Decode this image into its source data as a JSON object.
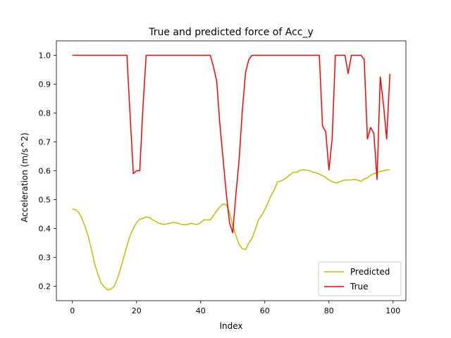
{
  "chart_data": {
    "type": "line",
    "title": "True and predicted force of Acc_y",
    "xlabel": "Index",
    "ylabel": "Acceleration (m/s^2)",
    "xlim": [
      -5,
      104
    ],
    "ylim": [
      0.15,
      1.05
    ],
    "xticks": [
      0,
      20,
      40,
      60,
      80,
      100
    ],
    "yticks": [
      0.2,
      0.3,
      0.4,
      0.5,
      0.6,
      0.7,
      0.8,
      0.9,
      1.0
    ],
    "ytick_labels": [
      "0.2",
      "0.3",
      "0.4",
      "0.5",
      "0.6",
      "0.7",
      "0.8",
      "0.9",
      "1.0"
    ],
    "grid": false,
    "legend": "lower-right",
    "series": [
      {
        "name": "Predicted",
        "color": "#bfbf00",
        "x": [
          0,
          1,
          2,
          3,
          4,
          5,
          6,
          7,
          8,
          9,
          10,
          11,
          12,
          13,
          14,
          15,
          16,
          17,
          18,
          19,
          20,
          21,
          22,
          23,
          24,
          25,
          26,
          27,
          28,
          29,
          30,
          31,
          32,
          33,
          34,
          35,
          36,
          37,
          38,
          39,
          40,
          41,
          42,
          43,
          44,
          45,
          46,
          47,
          48,
          49,
          50,
          51,
          52,
          53,
          54,
          55,
          56,
          57,
          58,
          59,
          60,
          61,
          62,
          63,
          64,
          65,
          66,
          67,
          68,
          69,
          70,
          71,
          72,
          73,
          74,
          75,
          76,
          77,
          78,
          79,
          80,
          81,
          82,
          83,
          84,
          85,
          86,
          87,
          88,
          89,
          90,
          91,
          92,
          93,
          94,
          95,
          96,
          97,
          98,
          99
        ],
        "values": [
          0.468,
          0.465,
          0.455,
          0.435,
          0.405,
          0.37,
          0.325,
          0.275,
          0.24,
          0.21,
          0.197,
          0.187,
          0.19,
          0.2,
          0.225,
          0.26,
          0.3,
          0.34,
          0.375,
          0.4,
          0.42,
          0.433,
          0.435,
          0.44,
          0.438,
          0.43,
          0.425,
          0.418,
          0.415,
          0.415,
          0.417,
          0.42,
          0.42,
          0.418,
          0.414,
          0.413,
          0.414,
          0.418,
          0.415,
          0.414,
          0.42,
          0.43,
          0.43,
          0.43,
          0.445,
          0.462,
          0.475,
          0.485,
          0.483,
          0.455,
          0.41,
          0.375,
          0.345,
          0.33,
          0.327,
          0.35,
          0.365,
          0.395,
          0.43,
          0.445,
          0.465,
          0.49,
          0.515,
          0.535,
          0.562,
          0.565,
          0.57,
          0.578,
          0.588,
          0.595,
          0.595,
          0.602,
          0.603,
          0.602,
          0.6,
          0.595,
          0.593,
          0.588,
          0.583,
          0.577,
          0.568,
          0.562,
          0.558,
          0.56,
          0.565,
          0.568,
          0.568,
          0.568,
          0.57,
          0.568,
          0.563,
          0.572,
          0.575,
          0.585,
          0.59,
          0.593,
          0.598,
          0.6,
          0.603,
          0.603
        ]
      },
      {
        "name": "True",
        "color": "#ff0000",
        "x": [
          0,
          1,
          2,
          3,
          4,
          5,
          6,
          7,
          8,
          9,
          10,
          11,
          12,
          13,
          14,
          15,
          16,
          17,
          18,
          19,
          20,
          21,
          22,
          23,
          24,
          25,
          26,
          27,
          28,
          29,
          30,
          31,
          32,
          33,
          34,
          35,
          36,
          37,
          38,
          39,
          40,
          41,
          42,
          43,
          44,
          45,
          46,
          47,
          48,
          49,
          50,
          51,
          52,
          53,
          54,
          55,
          56,
          57,
          58,
          59,
          60,
          61,
          62,
          63,
          64,
          65,
          66,
          67,
          68,
          69,
          70,
          71,
          72,
          73,
          74,
          75,
          76,
          77,
          78,
          79,
          80,
          81,
          82,
          83,
          84,
          85,
          86,
          87,
          88,
          89,
          90,
          91,
          92,
          93,
          94,
          95,
          96,
          97,
          98,
          99
        ],
        "values": [
          1,
          1,
          1,
          1,
          1,
          1,
          1,
          1,
          1,
          1,
          1,
          1,
          1,
          1,
          1,
          1,
          1,
          1,
          0.79,
          0.59,
          0.6,
          0.6,
          0.82,
          1,
          1,
          1,
          1,
          1,
          1,
          1,
          1,
          1,
          1,
          1,
          1,
          1,
          1,
          1,
          1,
          1,
          1,
          1,
          1,
          1,
          0.96,
          0.91,
          0.76,
          0.64,
          0.52,
          0.42,
          0.385,
          0.52,
          0.64,
          0.81,
          0.94,
          0.985,
          1,
          1,
          1,
          1,
          1,
          1,
          1,
          1,
          1,
          1,
          1,
          1,
          1,
          1,
          1,
          1,
          1,
          1,
          1,
          1,
          1,
          1,
          0.755,
          0.735,
          0.603,
          0.71,
          1,
          1,
          1,
          1,
          0.937,
          1,
          1,
          1,
          1,
          0.985,
          0.71,
          0.75,
          0.73,
          0.57,
          0.925,
          0.83,
          0.71,
          0.935
        ]
      }
    ]
  }
}
